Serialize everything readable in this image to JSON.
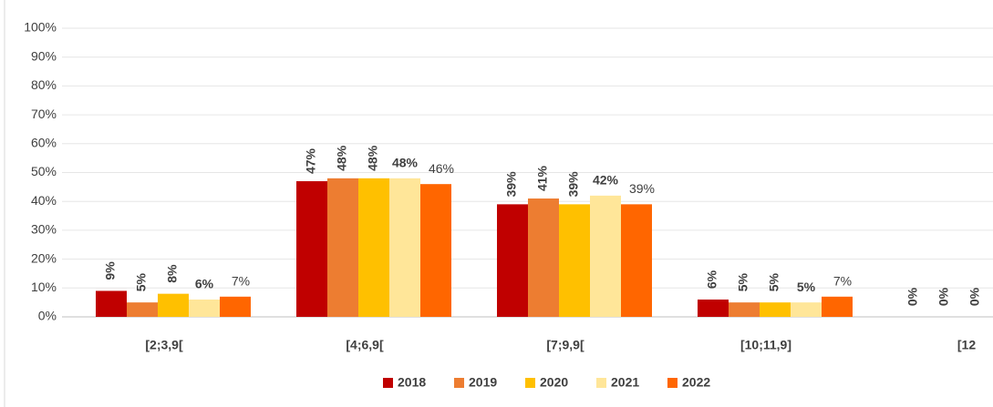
{
  "chart_data": {
    "type": "bar",
    "categories": [
      "[2;3,9[",
      "[4;6,9[",
      "[7;9,9[",
      "[10;11,9]",
      "[12"
    ],
    "series": [
      {
        "name": "2018",
        "color": "#c00000",
        "values": [
          9,
          47,
          39,
          6,
          0
        ],
        "value_labels": [
          "9%",
          "47%",
          "39%",
          "6%",
          "0%"
        ]
      },
      {
        "name": "2019",
        "color": "#ed7d31",
        "values": [
          5,
          48,
          41,
          5,
          0
        ],
        "value_labels": [
          "5%",
          "48%",
          "41%",
          "5%",
          "0%"
        ]
      },
      {
        "name": "2020",
        "color": "#ffc000",
        "values": [
          8,
          48,
          39,
          5,
          0
        ],
        "value_labels": [
          "8%",
          "48%",
          "39%",
          "5%",
          "0%"
        ]
      },
      {
        "name": "2021",
        "color": "#ffe699",
        "values": [
          6,
          48,
          42,
          5,
          null
        ],
        "value_labels": [
          "6%",
          "48%",
          "42%",
          "5%",
          null
        ]
      },
      {
        "name": "2022",
        "color": "#ff6600",
        "values": [
          7,
          46,
          39,
          7,
          null
        ],
        "value_labels": [
          "7%",
          "46%",
          "39%",
          "7%",
          null
        ]
      }
    ],
    "ylim": [
      0,
      100
    ],
    "yticks": [
      {
        "value": 0,
        "label": "0%"
      },
      {
        "value": 10,
        "label": "10%"
      },
      {
        "value": 20,
        "label": "20%"
      },
      {
        "value": 30,
        "label": "30%"
      },
      {
        "value": 40,
        "label": "40%"
      },
      {
        "value": 50,
        "label": "50%"
      },
      {
        "value": 60,
        "label": "60%"
      },
      {
        "value": 70,
        "label": "70%"
      },
      {
        "value": 80,
        "label": "80%"
      },
      {
        "value": 90,
        "label": "90%"
      },
      {
        "value": 100,
        "label": "100%"
      }
    ],
    "grid": true,
    "legend": "bottom"
  }
}
